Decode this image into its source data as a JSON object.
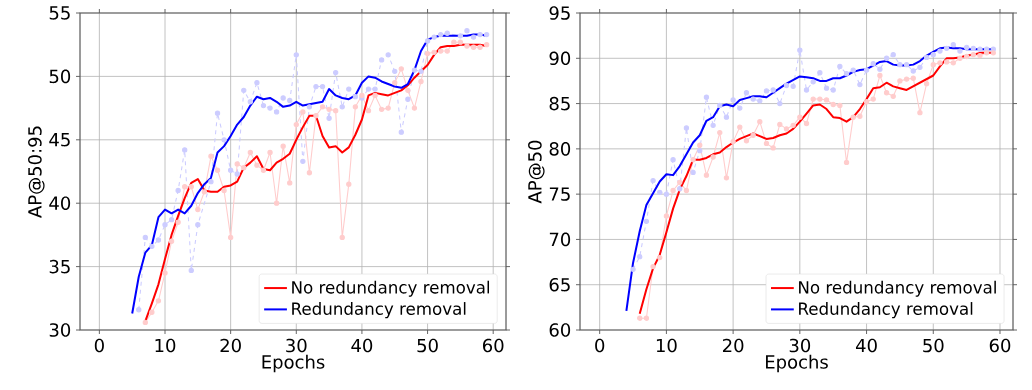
{
  "chart_data": [
    {
      "type": "line",
      "xlabel": "Epochs",
      "ylabel": "AP@50:95",
      "xlim": [
        -2.95,
        61.95
      ],
      "ylim": [
        30,
        55
      ],
      "xticks": [
        0,
        10,
        20,
        30,
        40,
        50,
        60
      ],
      "yticks": [
        30,
        35,
        40,
        45,
        50,
        55
      ],
      "grid": true,
      "legend": "bottom right",
      "series": [
        {
          "color": "#ccccff",
          "line_style": "dashed",
          "marker": "circle",
          "x": [
            6,
            7,
            8,
            9,
            10,
            11,
            12,
            13,
            14,
            15,
            16,
            17,
            18,
            19,
            20,
            21,
            22,
            23,
            24,
            25,
            26,
            27,
            28,
            29,
            30,
            31,
            32,
            33,
            34,
            35,
            36,
            37,
            38,
            39,
            40,
            41,
            42,
            43,
            44,
            45,
            46,
            47,
            48,
            49,
            50,
            51,
            52,
            53,
            54,
            55,
            56,
            57,
            58,
            59
          ],
          "values": [
            31.6,
            37.3,
            36.6,
            37.1,
            38.3,
            38.7,
            41.0,
            44.2,
            34.7,
            38.3,
            null,
            41.7,
            47.1,
            45.0,
            42.6,
            42.3,
            48.9,
            48.0,
            49.5,
            47.7,
            47.5,
            47.2,
            48.3,
            48.1,
            51.7,
            43.3,
            47.6,
            49.2,
            49.2,
            46.7,
            50.3,
            47.6,
            49.0,
            48.4,
            48.3,
            49.0,
            49.0,
            51.3,
            51.7,
            50.4,
            45.6,
            48.2,
            50.5,
            50.4,
            52.8,
            53.1,
            53.3,
            53.4,
            null,
            53.2,
            53.6,
            53.1,
            53.3,
            53.3
          ]
        },
        {
          "color": "#ffcccc",
          "line_style": "solid",
          "marker": "circle",
          "x": [
            7,
            8,
            9,
            10,
            11,
            12,
            13,
            14,
            15,
            16,
            17,
            18,
            19,
            20,
            21,
            22,
            23,
            24,
            25,
            26,
            27,
            28,
            29,
            30,
            31,
            32,
            33,
            34,
            35,
            36,
            37,
            38,
            39,
            40,
            41,
            42,
            43,
            44,
            45,
            46,
            47,
            48,
            49,
            50,
            51,
            52,
            53,
            54,
            55,
            56,
            57,
            58,
            59
          ],
          "values": [
            30.6,
            31.4,
            32.3,
            34.5,
            37.0,
            38.5,
            41.3,
            41.3,
            39.5,
            40.9,
            43.7,
            42.6,
            41.0,
            37.3,
            43.1,
            42.8,
            44.0,
            43.0,
            42.6,
            44.0,
            40.0,
            44.5,
            41.6,
            46.2,
            47.2,
            42.4,
            46.9,
            47.6,
            47.4,
            47.3,
            37.3,
            41.5,
            47.6,
            48.5,
            47.3,
            48.5,
            47.4,
            47.5,
            49.5,
            50.6,
            48.9,
            47.5,
            49.6,
            51.8,
            51.9,
            52.0,
            52.0,
            52.7,
            52.7,
            52.4,
            52.3,
            52.3,
            52.5
          ]
        },
        {
          "name": "No redundancy removal",
          "color": "#ff0000",
          "line_style": "solid",
          "marker": "none",
          "x": [
            7,
            8,
            9,
            10,
            11,
            12,
            13,
            14,
            15,
            16,
            17,
            18,
            19,
            20,
            21,
            22,
            23,
            24,
            25,
            26,
            27,
            28,
            29,
            30,
            31,
            32,
            33,
            34,
            35,
            36,
            37,
            38,
            39,
            40,
            41,
            42,
            43,
            44,
            45,
            46,
            47,
            48,
            49,
            50,
            51,
            52,
            53,
            54,
            55,
            56,
            57,
            58,
            59
          ],
          "values": [
            30.7,
            32.1,
            33.6,
            35.6,
            37.5,
            39.0,
            40.4,
            41.6,
            41.9,
            41.0,
            40.9,
            40.9,
            41.3,
            41.4,
            41.7,
            42.8,
            43.2,
            43.7,
            42.7,
            42.6,
            43.2,
            43.5,
            43.9,
            45.0,
            46.0,
            46.9,
            46.9,
            45.3,
            44.4,
            44.5,
            44.0,
            44.4,
            45.4,
            46.6,
            48.5,
            48.7,
            48.6,
            48.5,
            48.7,
            48.9,
            49.3,
            49.9,
            50.4,
            50.9,
            51.7,
            52.3,
            52.4,
            52.4,
            52.5,
            52.5,
            52.5,
            52.5,
            52.4
          ]
        },
        {
          "name": "Redundancy removal",
          "color": "#0000ff",
          "line_style": "solid",
          "marker": "none",
          "x": [
            5,
            6,
            7,
            8,
            9,
            10,
            11,
            12,
            13,
            14,
            15,
            16,
            17,
            18,
            19,
            20,
            21,
            22,
            23,
            24,
            25,
            26,
            27,
            28,
            29,
            30,
            31,
            32,
            33,
            34,
            35,
            36,
            37,
            38,
            39,
            40,
            41,
            42,
            43,
            44,
            45,
            46,
            47,
            48,
            49,
            50,
            51,
            52,
            53,
            54,
            55,
            56,
            57,
            58,
            59
          ],
          "values": [
            31.3,
            34.2,
            36.1,
            36.7,
            38.9,
            39.5,
            39.2,
            39.5,
            39.2,
            39.8,
            40.8,
            41.5,
            42.0,
            44.0,
            44.5,
            45.3,
            46.2,
            46.8,
            47.7,
            48.4,
            48.2,
            48.3,
            48.0,
            47.6,
            47.7,
            48.0,
            47.7,
            47.8,
            47.9,
            48.0,
            49.0,
            48.5,
            48.3,
            48.2,
            48.5,
            49.5,
            50.0,
            49.9,
            49.6,
            49.4,
            49.2,
            49.1,
            49.4,
            50.5,
            52.0,
            52.9,
            53.1,
            53.2,
            53.2,
            53.2,
            53.2,
            53.2,
            53.3,
            53.3,
            53.2
          ]
        }
      ]
    },
    {
      "type": "line",
      "xlabel": "Epochs",
      "ylabel": "AP@50",
      "xlim": [
        -2.95,
        61.95
      ],
      "ylim": [
        60,
        95
      ],
      "xticks": [
        0,
        10,
        20,
        30,
        40,
        50,
        60
      ],
      "yticks": [
        60,
        65,
        70,
        75,
        80,
        85,
        90,
        95
      ],
      "grid": true,
      "legend": "bottom right",
      "series": [
        {
          "color": "#ccccff",
          "line_style": "dashed",
          "marker": "circle",
          "x": [
            5,
            6,
            7,
            8,
            9,
            10,
            11,
            12,
            13,
            14,
            15,
            16,
            17,
            18,
            19,
            20,
            21,
            22,
            23,
            24,
            25,
            26,
            27,
            28,
            29,
            30,
            31,
            32,
            33,
            34,
            35,
            36,
            37,
            38,
            39,
            40,
            41,
            42,
            43,
            44,
            45,
            46,
            47,
            48,
            49,
            50,
            51,
            52,
            53,
            54,
            55,
            56,
            57,
            58,
            59
          ],
          "values": [
            66.7,
            68.1,
            72.0,
            76.5,
            75.2,
            75.0,
            78.8,
            75.6,
            82.3,
            77.4,
            79.8,
            85.7,
            82.6,
            84.8,
            83.5,
            85.4,
            84.5,
            86.2,
            85.5,
            85.3,
            86.4,
            86.5,
            85.0,
            87.0,
            86.9,
            90.9,
            86.5,
            87.4,
            88.4,
            86.7,
            86.5,
            89.1,
            88.3,
            88.7,
            87.1,
            88.7,
            89.4,
            88.8,
            90.0,
            90.4,
            89.3,
            89.3,
            88.6,
            89.0,
            90.1,
            90.4,
            90.8,
            91.1,
            91.5,
            90.8,
            91.2,
            91.1,
            91.0,
            91.0,
            91.0
          ]
        },
        {
          "color": "#ffcccc",
          "line_style": "solid",
          "marker": "circle",
          "x": [
            6,
            7,
            8,
            9,
            10,
            11,
            12,
            13,
            14,
            15,
            16,
            17,
            18,
            19,
            20,
            21,
            22,
            23,
            24,
            25,
            26,
            27,
            28,
            29,
            30,
            31,
            32,
            33,
            34,
            35,
            36,
            37,
            38,
            39,
            40,
            41,
            42,
            43,
            44,
            45,
            46,
            47,
            48,
            49,
            50,
            51,
            52,
            53,
            54,
            55,
            56,
            57,
            58,
            59
          ],
          "values": [
            61.3,
            61.3,
            67.0,
            68.0,
            72.6,
            75.4,
            76.3,
            75.4,
            78.8,
            80.4,
            77.1,
            79.1,
            81.8,
            76.8,
            80.8,
            82.4,
            80.9,
            81.5,
            83.0,
            80.6,
            80.1,
            82.7,
            82.2,
            82.6,
            83.5,
            82.8,
            85.5,
            85.5,
            85.4,
            84.9,
            84.8,
            78.5,
            83.5,
            83.6,
            85.2,
            85.5,
            88.1,
            86.2,
            85.8,
            87.5,
            87.7,
            87.8,
            84.0,
            87.2,
            89.3,
            89.5,
            89.6,
            89.5,
            90.0,
            90.2,
            90.4,
            90.3,
            90.6,
            90.6
          ]
        },
        {
          "name": "No redundancy removal",
          "color": "#ff0000",
          "line_style": "solid",
          "marker": "none",
          "x": [
            6,
            7,
            8,
            9,
            10,
            11,
            12,
            13,
            14,
            15,
            16,
            17,
            18,
            19,
            20,
            21,
            22,
            23,
            24,
            25,
            26,
            27,
            28,
            29,
            30,
            31,
            32,
            33,
            34,
            35,
            36,
            37,
            38,
            39,
            40,
            41,
            42,
            43,
            44,
            45,
            46,
            47,
            48,
            49,
            50,
            51,
            52,
            53,
            54,
            55,
            56,
            57,
            58,
            59
          ],
          "values": [
            61.8,
            64.5,
            66.8,
            68.3,
            70.8,
            73.4,
            75.5,
            77.0,
            78.8,
            78.8,
            79.0,
            79.4,
            79.6,
            80.2,
            80.7,
            81.1,
            81.4,
            81.7,
            81.4,
            81.1,
            81.2,
            81.5,
            81.7,
            82.2,
            83.0,
            83.9,
            84.8,
            84.9,
            84.4,
            83.5,
            83.4,
            83.0,
            83.5,
            84.4,
            85.5,
            86.7,
            86.8,
            87.3,
            86.9,
            86.7,
            86.5,
            86.9,
            87.3,
            87.7,
            88.1,
            89.1,
            90.0,
            90.0,
            90.1,
            90.3,
            90.4,
            90.6,
            90.6,
            90.6
          ]
        },
        {
          "name": "Redundancy removal",
          "color": "#0000ff",
          "line_style": "solid",
          "marker": "none",
          "x": [
            4,
            5,
            6,
            7,
            8,
            9,
            10,
            11,
            12,
            13,
            14,
            15,
            16,
            17,
            18,
            19,
            20,
            21,
            22,
            23,
            24,
            25,
            26,
            27,
            28,
            29,
            30,
            31,
            32,
            33,
            34,
            35,
            36,
            37,
            38,
            39,
            40,
            41,
            42,
            43,
            44,
            45,
            46,
            47,
            48,
            49,
            50,
            51,
            52,
            53,
            54,
            55,
            56,
            57,
            58,
            59
          ],
          "values": [
            62.1,
            67.4,
            70.9,
            73.8,
            75.1,
            76.4,
            77.2,
            77.1,
            78.1,
            79.4,
            80.7,
            81.5,
            83.1,
            83.5,
            84.7,
            84.9,
            84.7,
            85.4,
            85.6,
            85.8,
            85.8,
            85.7,
            86.2,
            86.7,
            87.2,
            87.6,
            88.0,
            87.9,
            87.8,
            87.5,
            87.5,
            87.8,
            87.8,
            88.1,
            88.5,
            88.7,
            88.8,
            89.2,
            89.6,
            89.7,
            89.3,
            89.2,
            89.2,
            89.3,
            89.7,
            90.3,
            90.7,
            91.1,
            91.2,
            91.1,
            91.1,
            91.0,
            91.0,
            91.0,
            91.0,
            91.0
          ]
        }
      ]
    }
  ]
}
